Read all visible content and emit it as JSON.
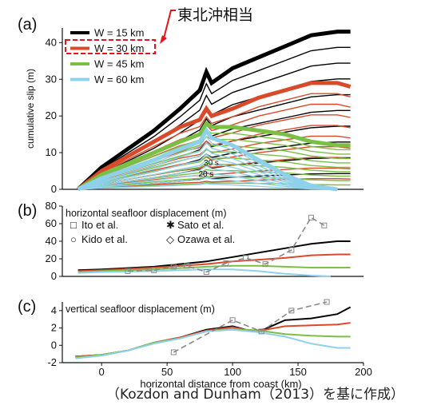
{
  "annotation_jp": "東北沖相当",
  "credit": "（Kozdon and Dunham（2013）を基に作成）",
  "colors": {
    "w15": "#000000",
    "w30": "#d94a2b",
    "w45": "#7bbf45",
    "w60": "#8fd0ea",
    "obs": "#8a8a8a",
    "highlight": "#e3141b"
  },
  "chart_data": [
    {
      "panel": "(a)",
      "type": "line",
      "ylabel": "cumulative slip (m)",
      "ylim": [
        0,
        44
      ],
      "xlim": [
        -30,
        200
      ],
      "yticks": [
        0,
        10,
        20,
        30,
        40
      ],
      "legend": [
        "W = 15 km",
        "W = 30 km",
        "W = 45 km",
        "W = 60 km"
      ],
      "legend_position": "top-left",
      "annotations": [
        "30 s",
        "20 s"
      ],
      "series": [
        {
          "name": "W = 15 km",
          "x": [
            -18,
            0,
            40,
            60,
            75,
            80,
            84,
            100,
            120,
            140,
            160,
            180,
            190
          ],
          "y": [
            0,
            6,
            16,
            22,
            27,
            32,
            29,
            33,
            36,
            39,
            42,
            43,
            43
          ]
        },
        {
          "name": "W = 30 km",
          "x": [
            -18,
            0,
            40,
            60,
            75,
            80,
            84,
            100,
            120,
            140,
            160,
            180,
            190
          ],
          "y": [
            0,
            5,
            13,
            17,
            19,
            22,
            20,
            22,
            25,
            27,
            29,
            29,
            28
          ]
        },
        {
          "name": "W = 45 km",
          "x": [
            -18,
            0,
            40,
            60,
            75,
            80,
            84,
            100,
            120,
            140,
            160,
            180,
            190
          ],
          "y": [
            0,
            4,
            10,
            13,
            15,
            18,
            17,
            17,
            16,
            15,
            13,
            12,
            12
          ]
        },
        {
          "name": "W = 60 km",
          "x": [
            -18,
            0,
            40,
            60,
            75,
            80,
            84,
            100,
            120,
            140,
            160,
            180
          ],
          "y": [
            0,
            3,
            8,
            11,
            13,
            16,
            14,
            12,
            8,
            4,
            1,
            0
          ]
        }
      ]
    },
    {
      "panel": "(b)",
      "type": "line",
      "title": "horizontal seafloor displacement (m)",
      "ylim": [
        0,
        80
      ],
      "xlim": [
        -30,
        200
      ],
      "yticks": [
        0,
        20,
        40,
        60,
        80
      ],
      "legend": [
        "Ito et al.",
        "Sato et al.",
        "Kido et al.",
        "Ozawa et al."
      ],
      "series": [
        {
          "name": "W = 15 km",
          "x": [
            -18,
            0,
            40,
            80,
            100,
            120,
            140,
            160,
            180,
            190
          ],
          "y": [
            7,
            8,
            11,
            17,
            22,
            27,
            32,
            37,
            40,
            40
          ]
        },
        {
          "name": "W = 30 km",
          "x": [
            -18,
            0,
            40,
            80,
            100,
            120,
            140,
            160,
            180,
            190
          ],
          "y": [
            6,
            7,
            10,
            14,
            17,
            19,
            21,
            24,
            25,
            25
          ]
        },
        {
          "name": "W = 45 km",
          "x": [
            -18,
            0,
            40,
            80,
            100,
            120,
            140,
            160,
            180,
            190
          ],
          "y": [
            5,
            6,
            8,
            11,
            12,
            12,
            11,
            10,
            10,
            10
          ]
        },
        {
          "name": "W = 60 km",
          "x": [
            -18,
            0,
            40,
            80,
            100,
            120,
            140,
            160,
            175
          ],
          "y": [
            4,
            5,
            6,
            8,
            8,
            6,
            3,
            1,
            0
          ]
        },
        {
          "name": "observed",
          "x": [
            20,
            40,
            55,
            65,
            80,
            95,
            110,
            125,
            145,
            160,
            170
          ],
          "y": [
            6,
            7,
            11,
            12,
            5,
            15,
            21,
            14,
            30,
            67,
            58
          ]
        }
      ]
    },
    {
      "panel": "(c)",
      "type": "line",
      "title": "vertical seafloor displacement (m)",
      "ylim": [
        -2,
        5
      ],
      "xlim": [
        -30,
        200
      ],
      "yticks": [
        -2,
        0,
        2,
        4
      ],
      "xticks": [
        0,
        50,
        100,
        150,
        200
      ],
      "xlabel": "horizontal distance from coast (km)",
      "series": [
        {
          "name": "W = 15 km",
          "x": [
            -20,
            0,
            20,
            40,
            60,
            80,
            100,
            115,
            125,
            140,
            160,
            180,
            190
          ],
          "y": [
            -1.3,
            -1.1,
            -0.6,
            0.3,
            0.9,
            1.8,
            2.2,
            1.6,
            1.9,
            2.9,
            3.1,
            3.6,
            4.4
          ]
        },
        {
          "name": "W = 30 km",
          "x": [
            -20,
            0,
            20,
            40,
            60,
            80,
            100,
            115,
            125,
            140,
            160,
            180,
            190
          ],
          "y": [
            -1.3,
            -1.1,
            -0.6,
            0.3,
            0.9,
            1.7,
            2.1,
            1.6,
            1.8,
            2.2,
            2.3,
            2.4,
            2.6
          ]
        },
        {
          "name": "W = 45 km",
          "x": [
            -20,
            0,
            20,
            40,
            60,
            80,
            100,
            120,
            140,
            160,
            180,
            190
          ],
          "y": [
            -1.4,
            -1.1,
            -0.6,
            0.3,
            0.8,
            1.6,
            1.9,
            1.7,
            1.3,
            1.1,
            1.0,
            1.0
          ]
        },
        {
          "name": "W = 60 km",
          "x": [
            -20,
            0,
            20,
            40,
            60,
            80,
            100,
            120,
            140,
            160,
            180,
            190
          ],
          "y": [
            -1.5,
            -1.2,
            -0.6,
            0.2,
            0.8,
            1.6,
            1.8,
            1.5,
            1.0,
            0.2,
            -0.3,
            -0.3
          ]
        },
        {
          "name": "observed",
          "x": [
            55,
            100,
            122,
            145,
            172
          ],
          "y": [
            -0.8,
            2.9,
            1.6,
            4.0,
            5.0
          ]
        }
      ]
    }
  ]
}
